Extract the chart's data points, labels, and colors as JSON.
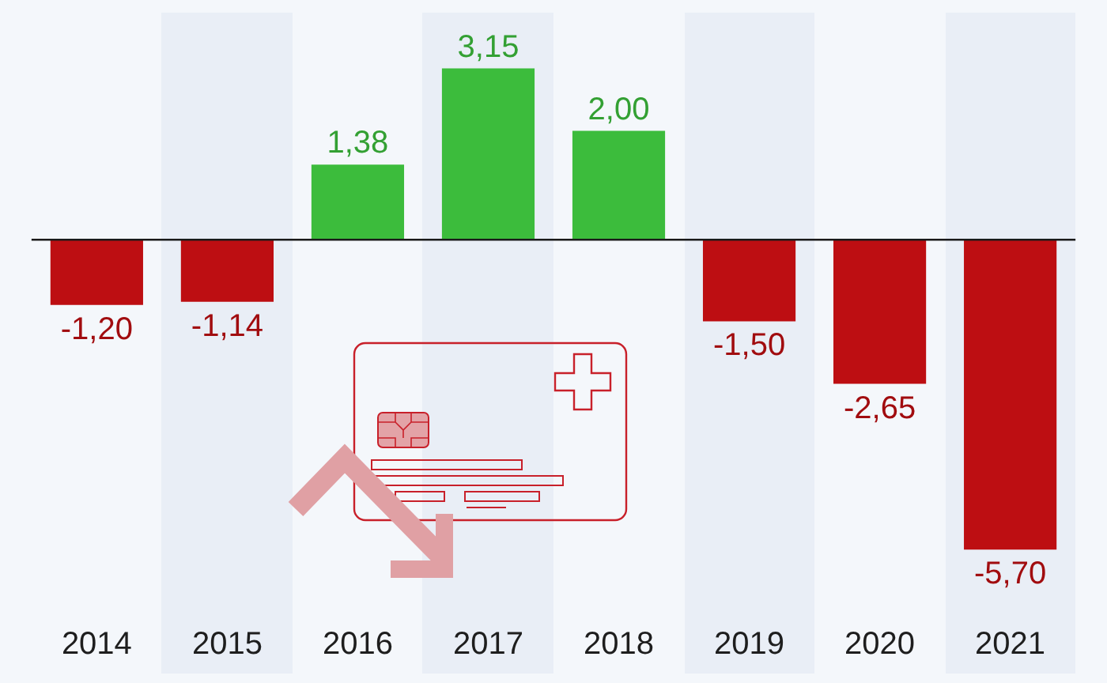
{
  "chart_data": {
    "type": "bar",
    "categories": [
      "2014",
      "2015",
      "2016",
      "2017",
      "2018",
      "2019",
      "2020",
      "2021"
    ],
    "values": [
      -1.2,
      -1.14,
      1.38,
      3.15,
      2.0,
      -1.5,
      -2.65,
      -5.7
    ],
    "colors": [
      "#bd0e12",
      "#bd0e12",
      "#3cbc3c",
      "#3cbc3c",
      "#3cbc3c",
      "#bd0e12",
      "#bd0e12",
      "#bd0e12"
    ],
    "value_labels": [
      "-1,20",
      "-1,14",
      "1,38",
      "3,15",
      "2,00",
      "-1,50",
      "-2,65",
      "-5,70"
    ],
    "tick_labels": "x",
    "ref_lines": [
      {
        "axis": "y",
        "value": 0,
        "color": "#1a1a1a"
      }
    ]
  }
}
